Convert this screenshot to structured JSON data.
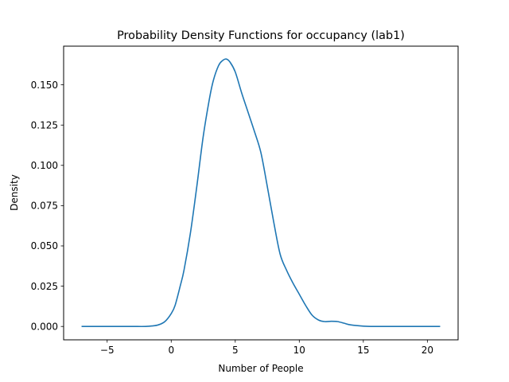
{
  "chart_data": {
    "type": "line",
    "title": "Probability Density Functions for occupancy (lab1)",
    "xlabel": "Number of People",
    "ylabel": "Density",
    "xlim": [
      -8.4,
      22.4
    ],
    "ylim": [
      -0.0083,
      0.174
    ],
    "xticks": [
      -5,
      0,
      5,
      10,
      15,
      20
    ],
    "xtick_labels": [
      "−5",
      "0",
      "5",
      "10",
      "15",
      "20"
    ],
    "yticks": [
      0.0,
      0.025,
      0.05,
      0.075,
      0.1,
      0.125,
      0.15
    ],
    "ytick_labels": [
      "0.000",
      "0.025",
      "0.050",
      "0.075",
      "0.100",
      "0.125",
      "0.150"
    ],
    "grid": false,
    "legend": "none",
    "series": [
      {
        "color": "#1f77b4",
        "x": [
          -7,
          -6,
          -5,
          -4,
          -3,
          -2,
          -1.5,
          -1,
          -0.5,
          0,
          0.3,
          0.7,
          1,
          1.5,
          2,
          2.5,
          3,
          3.3,
          3.7,
          4,
          4.3,
          4.6,
          5,
          5.5,
          6,
          6.5,
          7,
          7.5,
          8,
          8.5,
          9,
          9.5,
          10,
          10.5,
          11,
          11.5,
          12,
          12.5,
          13,
          13.5,
          14,
          15,
          16,
          17,
          18,
          19,
          20,
          21
        ],
        "y": [
          0.0,
          0.0,
          0.0,
          0.0,
          0.0,
          0.0,
          0.0003,
          0.001,
          0.003,
          0.008,
          0.013,
          0.025,
          0.035,
          0.058,
          0.087,
          0.118,
          0.142,
          0.153,
          0.162,
          0.165,
          0.166,
          0.164,
          0.158,
          0.145,
          0.133,
          0.121,
          0.108,
          0.087,
          0.065,
          0.045,
          0.035,
          0.027,
          0.02,
          0.013,
          0.007,
          0.004,
          0.003,
          0.0032,
          0.003,
          0.002,
          0.001,
          0.0002,
          0.0,
          0.0,
          0.0,
          0.0,
          0.0,
          0.0
        ]
      }
    ]
  }
}
